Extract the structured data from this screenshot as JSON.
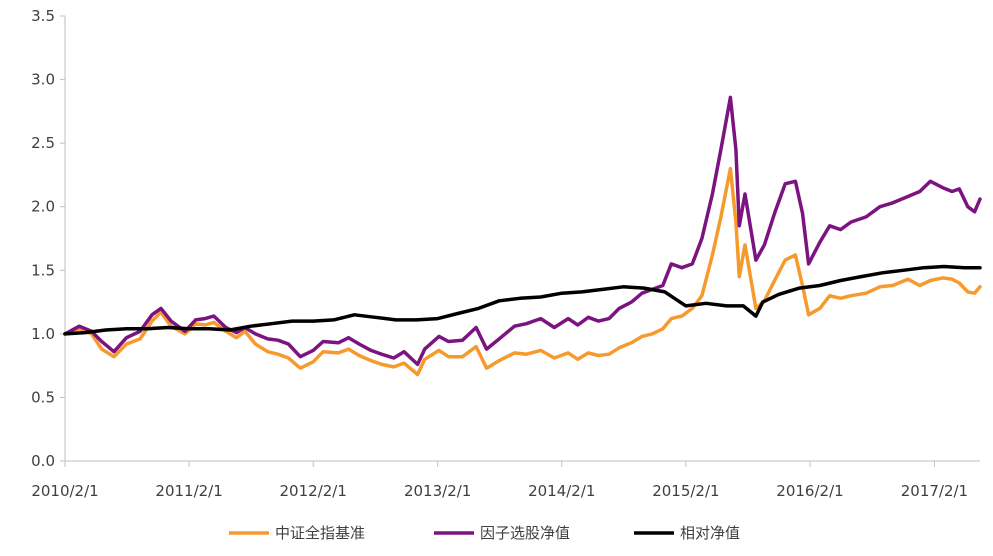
{
  "chart_data": {
    "type": "line",
    "title": "",
    "xlabel": "",
    "ylabel": "",
    "ylim": [
      0,
      3.5
    ],
    "y_ticks": [
      "0.0",
      "0.5",
      "1.0",
      "1.5",
      "2.0",
      "2.5",
      "3.0",
      "3.5"
    ],
    "x_range": [
      "2010-02-01",
      "2017-06-15"
    ],
    "x_ticks": [
      {
        "label": "2010/2/1",
        "date": "2010-02-01"
      },
      {
        "label": "2011/2/1",
        "date": "2011-02-01"
      },
      {
        "label": "2012/2/1",
        "date": "2012-02-01"
      },
      {
        "label": "2013/2/1",
        "date": "2013-02-01"
      },
      {
        "label": "2014/2/1",
        "date": "2014-02-01"
      },
      {
        "label": "2015/2/1",
        "date": "2015-02-01"
      },
      {
        "label": "2016/2/1",
        "date": "2016-02-01"
      },
      {
        "label": "2017/2/1",
        "date": "2017-02-01"
      }
    ],
    "grid": false,
    "legend_position": "bottom",
    "series": [
      {
        "name": "中证全指基准",
        "color": "#F79A2E",
        "points": [
          [
            "2010-02-01",
            1.0
          ],
          [
            "2010-03-15",
            1.04
          ],
          [
            "2010-04-20",
            1.0
          ],
          [
            "2010-05-20",
            0.88
          ],
          [
            "2010-06-25",
            0.82
          ],
          [
            "2010-08-01",
            0.92
          ],
          [
            "2010-09-10",
            0.96
          ],
          [
            "2010-10-15",
            1.1
          ],
          [
            "2010-11-10",
            1.17
          ],
          [
            "2010-12-10",
            1.06
          ],
          [
            "2011-01-20",
            1.0
          ],
          [
            "2011-02-20",
            1.08
          ],
          [
            "2011-03-20",
            1.07
          ],
          [
            "2011-04-15",
            1.09
          ],
          [
            "2011-05-20",
            1.02
          ],
          [
            "2011-06-20",
            0.97
          ],
          [
            "2011-07-15",
            1.02
          ],
          [
            "2011-08-15",
            0.92
          ],
          [
            "2011-09-20",
            0.86
          ],
          [
            "2011-10-20",
            0.84
          ],
          [
            "2011-11-20",
            0.81
          ],
          [
            "2011-12-25",
            0.73
          ],
          [
            "2012-02-01",
            0.78
          ],
          [
            "2012-03-01",
            0.86
          ],
          [
            "2012-04-15",
            0.85
          ],
          [
            "2012-05-15",
            0.88
          ],
          [
            "2012-06-15",
            0.83
          ],
          [
            "2012-07-20",
            0.79
          ],
          [
            "2012-08-20",
            0.76
          ],
          [
            "2012-09-25",
            0.74
          ],
          [
            "2012-10-25",
            0.77
          ],
          [
            "2012-12-04",
            0.68
          ],
          [
            "2012-12-25",
            0.8
          ],
          [
            "2013-02-05",
            0.87
          ],
          [
            "2013-03-05",
            0.82
          ],
          [
            "2013-04-15",
            0.82
          ],
          [
            "2013-05-25",
            0.9
          ],
          [
            "2013-06-25",
            0.73
          ],
          [
            "2013-08-01",
            0.79
          ],
          [
            "2013-09-15",
            0.85
          ],
          [
            "2013-10-20",
            0.84
          ],
          [
            "2013-12-01",
            0.87
          ],
          [
            "2014-01-10",
            0.81
          ],
          [
            "2014-02-20",
            0.85
          ],
          [
            "2014-03-20",
            0.8
          ],
          [
            "2014-04-20",
            0.85
          ],
          [
            "2014-05-20",
            0.83
          ],
          [
            "2014-06-20",
            0.84
          ],
          [
            "2014-07-20",
            0.89
          ],
          [
            "2014-08-25",
            0.93
          ],
          [
            "2014-09-25",
            0.98
          ],
          [
            "2014-10-25",
            1.0
          ],
          [
            "2014-11-25",
            1.04
          ],
          [
            "2014-12-20",
            1.12
          ],
          [
            "2015-01-20",
            1.14
          ],
          [
            "2015-02-20",
            1.2
          ],
          [
            "2015-03-20",
            1.3
          ],
          [
            "2015-04-20",
            1.62
          ],
          [
            "2015-05-15",
            1.92
          ],
          [
            "2015-06-12",
            2.3
          ],
          [
            "2015-06-28",
            1.88
          ],
          [
            "2015-07-08",
            1.45
          ],
          [
            "2015-07-25",
            1.7
          ],
          [
            "2015-08-26",
            1.2
          ],
          [
            "2015-09-20",
            1.26
          ],
          [
            "2015-10-20",
            1.42
          ],
          [
            "2015-11-20",
            1.58
          ],
          [
            "2015-12-20",
            1.62
          ],
          [
            "2016-01-10",
            1.38
          ],
          [
            "2016-01-28",
            1.15
          ],
          [
            "2016-03-01",
            1.2
          ],
          [
            "2016-03-30",
            1.3
          ],
          [
            "2016-05-01",
            1.28
          ],
          [
            "2016-06-01",
            1.3
          ],
          [
            "2016-07-15",
            1.32
          ],
          [
            "2016-08-25",
            1.37
          ],
          [
            "2016-10-01",
            1.38
          ],
          [
            "2016-11-15",
            1.43
          ],
          [
            "2016-12-20",
            1.38
          ],
          [
            "2017-01-20",
            1.42
          ],
          [
            "2017-02-25",
            1.44
          ],
          [
            "2017-03-25",
            1.43
          ],
          [
            "2017-04-15",
            1.4
          ],
          [
            "2017-05-10",
            1.33
          ],
          [
            "2017-05-30",
            1.32
          ],
          [
            "2017-06-15",
            1.37
          ]
        ]
      },
      {
        "name": "因子选股净值",
        "color": "#7B1380",
        "points": [
          [
            "2010-02-01",
            1.0
          ],
          [
            "2010-03-15",
            1.06
          ],
          [
            "2010-04-20",
            1.02
          ],
          [
            "2010-05-20",
            0.94
          ],
          [
            "2010-06-25",
            0.86
          ],
          [
            "2010-08-01",
            0.97
          ],
          [
            "2010-09-10",
            1.02
          ],
          [
            "2010-10-15",
            1.15
          ],
          [
            "2010-11-10",
            1.2
          ],
          [
            "2010-12-10",
            1.1
          ],
          [
            "2011-01-20",
            1.02
          ],
          [
            "2011-02-20",
            1.11
          ],
          [
            "2011-03-20",
            1.12
          ],
          [
            "2011-04-15",
            1.14
          ],
          [
            "2011-05-20",
            1.05
          ],
          [
            "2011-06-20",
            1.01
          ],
          [
            "2011-07-15",
            1.05
          ],
          [
            "2011-08-15",
            1.0
          ],
          [
            "2011-09-20",
            0.96
          ],
          [
            "2011-10-20",
            0.95
          ],
          [
            "2011-11-20",
            0.92
          ],
          [
            "2011-12-25",
            0.82
          ],
          [
            "2012-02-01",
            0.87
          ],
          [
            "2012-03-01",
            0.94
          ],
          [
            "2012-04-15",
            0.93
          ],
          [
            "2012-05-15",
            0.97
          ],
          [
            "2012-06-15",
            0.92
          ],
          [
            "2012-07-20",
            0.87
          ],
          [
            "2012-08-20",
            0.84
          ],
          [
            "2012-09-25",
            0.81
          ],
          [
            "2012-10-25",
            0.86
          ],
          [
            "2012-12-04",
            0.76
          ],
          [
            "2012-12-25",
            0.88
          ],
          [
            "2013-02-05",
            0.98
          ],
          [
            "2013-03-05",
            0.94
          ],
          [
            "2013-04-15",
            0.95
          ],
          [
            "2013-05-25",
            1.05
          ],
          [
            "2013-06-25",
            0.88
          ],
          [
            "2013-08-01",
            0.96
          ],
          [
            "2013-09-15",
            1.06
          ],
          [
            "2013-10-20",
            1.08
          ],
          [
            "2013-12-01",
            1.12
          ],
          [
            "2014-01-10",
            1.05
          ],
          [
            "2014-02-20",
            1.12
          ],
          [
            "2014-03-20",
            1.07
          ],
          [
            "2014-04-20",
            1.13
          ],
          [
            "2014-05-20",
            1.1
          ],
          [
            "2014-06-20",
            1.12
          ],
          [
            "2014-07-20",
            1.2
          ],
          [
            "2014-08-25",
            1.25
          ],
          [
            "2014-09-25",
            1.32
          ],
          [
            "2014-10-25",
            1.35
          ],
          [
            "2014-11-25",
            1.38
          ],
          [
            "2014-12-20",
            1.55
          ],
          [
            "2015-01-20",
            1.52
          ],
          [
            "2015-02-20",
            1.55
          ],
          [
            "2015-03-20",
            1.75
          ],
          [
            "2015-04-20",
            2.1
          ],
          [
            "2015-05-15",
            2.45
          ],
          [
            "2015-06-12",
            2.86
          ],
          [
            "2015-06-28",
            2.45
          ],
          [
            "2015-07-08",
            1.85
          ],
          [
            "2015-07-25",
            2.1
          ],
          [
            "2015-08-26",
            1.58
          ],
          [
            "2015-09-20",
            1.7
          ],
          [
            "2015-10-20",
            1.95
          ],
          [
            "2015-11-20",
            2.18
          ],
          [
            "2015-12-20",
            2.2
          ],
          [
            "2016-01-10",
            1.95
          ],
          [
            "2016-01-28",
            1.55
          ],
          [
            "2016-03-01",
            1.72
          ],
          [
            "2016-03-30",
            1.85
          ],
          [
            "2016-05-01",
            1.82
          ],
          [
            "2016-06-01",
            1.88
          ],
          [
            "2016-07-15",
            1.92
          ],
          [
            "2016-08-25",
            2.0
          ],
          [
            "2016-10-01",
            2.03
          ],
          [
            "2016-11-15",
            2.08
          ],
          [
            "2016-12-20",
            2.12
          ],
          [
            "2017-01-20",
            2.2
          ],
          [
            "2017-02-25",
            2.15
          ],
          [
            "2017-03-25",
            2.12
          ],
          [
            "2017-04-15",
            2.14
          ],
          [
            "2017-05-10",
            2.0
          ],
          [
            "2017-05-30",
            1.96
          ],
          [
            "2017-06-15",
            2.06
          ]
        ]
      },
      {
        "name": "相对净值",
        "color": "#000000",
        "points": [
          [
            "2010-02-01",
            1.0
          ],
          [
            "2010-04-01",
            1.01
          ],
          [
            "2010-06-01",
            1.03
          ],
          [
            "2010-08-01",
            1.04
          ],
          [
            "2010-10-01",
            1.04
          ],
          [
            "2010-12-01",
            1.05
          ],
          [
            "2011-02-01",
            1.04
          ],
          [
            "2011-04-01",
            1.04
          ],
          [
            "2011-06-01",
            1.03
          ],
          [
            "2011-08-01",
            1.06
          ],
          [
            "2011-10-01",
            1.08
          ],
          [
            "2011-12-01",
            1.1
          ],
          [
            "2012-02-01",
            1.1
          ],
          [
            "2012-04-01",
            1.11
          ],
          [
            "2012-06-01",
            1.15
          ],
          [
            "2012-08-01",
            1.13
          ],
          [
            "2012-10-01",
            1.11
          ],
          [
            "2012-12-01",
            1.11
          ],
          [
            "2013-02-01",
            1.12
          ],
          [
            "2013-04-01",
            1.16
          ],
          [
            "2013-06-01",
            1.2
          ],
          [
            "2013-08-01",
            1.26
          ],
          [
            "2013-10-01",
            1.28
          ],
          [
            "2013-12-01",
            1.29
          ],
          [
            "2014-02-01",
            1.32
          ],
          [
            "2014-04-01",
            1.33
          ],
          [
            "2014-06-01",
            1.35
          ],
          [
            "2014-08-01",
            1.37
          ],
          [
            "2014-10-01",
            1.36
          ],
          [
            "2014-12-01",
            1.33
          ],
          [
            "2015-02-01",
            1.22
          ],
          [
            "2015-04-01",
            1.24
          ],
          [
            "2015-06-01",
            1.22
          ],
          [
            "2015-07-20",
            1.22
          ],
          [
            "2015-08-26",
            1.14
          ],
          [
            "2015-09-15",
            1.25
          ],
          [
            "2015-11-01",
            1.31
          ],
          [
            "2016-01-01",
            1.36
          ],
          [
            "2016-03-01",
            1.38
          ],
          [
            "2016-05-01",
            1.42
          ],
          [
            "2016-07-01",
            1.45
          ],
          [
            "2016-09-01",
            1.48
          ],
          [
            "2016-11-01",
            1.5
          ],
          [
            "2017-01-01",
            1.52
          ],
          [
            "2017-03-01",
            1.53
          ],
          [
            "2017-05-01",
            1.52
          ],
          [
            "2017-06-15",
            1.52
          ]
        ]
      }
    ]
  }
}
